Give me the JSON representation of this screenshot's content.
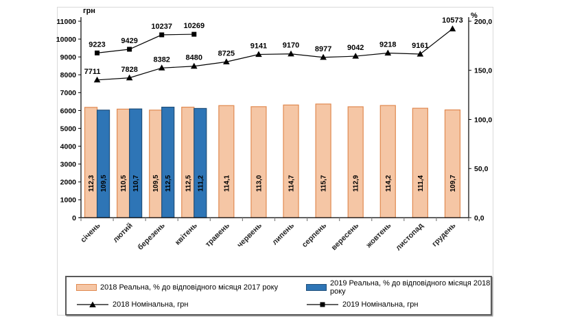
{
  "chart_data": {
    "type": "combo-bar-line",
    "title": "",
    "categories": [
      "січень",
      "лютий",
      "березень",
      "квітень",
      "травень",
      "червень",
      "липень",
      "серпень",
      "вересень",
      "жовтень",
      "листопад",
      "грудень"
    ],
    "left_axis": {
      "title": "грн",
      "min": 0,
      "max": 11000,
      "step": 1000,
      "tick_labels": [
        "0",
        "1000",
        "2000",
        "3000",
        "4000",
        "5000",
        "6000",
        "7000",
        "8000",
        "9000",
        "10000",
        "11000"
      ]
    },
    "right_axis": {
      "title": "%",
      "min": 0,
      "max": 200,
      "step": 50,
      "tick_labels": [
        "0,0",
        "50,0",
        "100,0",
        "150,0",
        "200,0"
      ]
    },
    "series": {
      "bars": [
        {
          "name": "2018 Реальна, % до відповідного місяця 2017 року",
          "axis": "right",
          "fill": "#F5C6A5",
          "stroke": "#E08950",
          "values": [
            112.3,
            110.5,
            109.5,
            112.5,
            114.1,
            113.0,
            114.7,
            115.7,
            112.9,
            114.2,
            111.4,
            109.7
          ],
          "labels": [
            "112,3",
            "110,5",
            "109,5",
            "112,5",
            "114,1",
            "113,0",
            "114,7",
            "115,7",
            "112,9",
            "114,2",
            "111,4",
            "109,7"
          ]
        },
        {
          "name": "2019 Реальна, % до відповідного місяця 2018 року",
          "axis": "right",
          "fill": "#2E75B6",
          "stroke": "#1F4E79",
          "values": [
            109.5,
            110.7,
            112.5,
            111.2,
            null,
            null,
            null,
            null,
            null,
            null,
            null,
            null
          ],
          "labels": [
            "109,5",
            "110,7",
            "112,5",
            "111,2"
          ]
        }
      ],
      "lines": [
        {
          "name": "2018 Номінальна, грн",
          "axis": "left",
          "marker": "triangle",
          "color": "#000000",
          "values": [
            7711,
            7828,
            8382,
            8480,
            8725,
            9141,
            9170,
            8977,
            9042,
            9218,
            9161,
            10573
          ]
        },
        {
          "name": "2019 Номінальна, грн",
          "axis": "left",
          "marker": "square",
          "color": "#000000",
          "values": [
            9223,
            9429,
            10237,
            10269,
            null,
            null,
            null,
            null,
            null,
            null,
            null,
            null
          ]
        }
      ]
    },
    "grid": false,
    "legend_position": "bottom"
  }
}
